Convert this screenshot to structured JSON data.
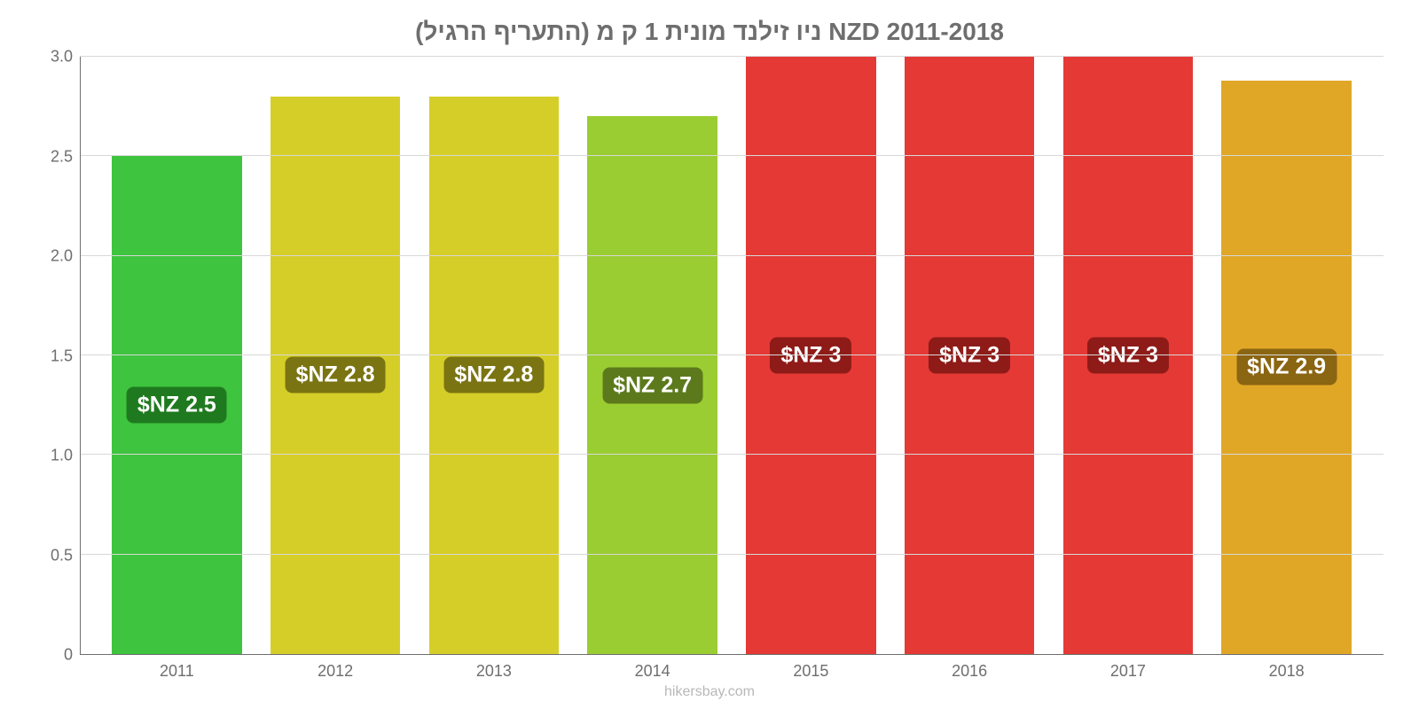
{
  "chart": {
    "type": "bar",
    "title": "ניו זילנד מונית 1 ק מ (התעריף הרגיל) NZD 2011-2018",
    "title_color": "#6e6e6e",
    "title_fontsize": 28,
    "background_color": "#ffffff",
    "grid_color": "#d8d8d8",
    "axis_color": "#6e6e6e",
    "tick_color": "#6e6e6e",
    "tick_fontsize": 18,
    "ylim": [
      0,
      3.0
    ],
    "yticks": [
      0,
      0.5,
      1.0,
      1.5,
      2.0,
      2.5,
      3.0
    ],
    "ytick_labels": [
      "0",
      "0.5",
      "1.0",
      "1.5",
      "2.0",
      "2.5",
      "3.0"
    ],
    "bar_width": 0.82,
    "categories": [
      "2011",
      "2012",
      "2013",
      "2014",
      "2015",
      "2016",
      "2017",
      "2018"
    ],
    "values": [
      2.5,
      2.8,
      2.8,
      2.7,
      3.0,
      3.0,
      3.0,
      2.88
    ],
    "bar_colors": [
      "#3ec43e",
      "#d6ce28",
      "#d6ce28",
      "#9acd32",
      "#e53935",
      "#e53935",
      "#e53935",
      "#e0a726"
    ],
    "value_labels": [
      "$NZ 2.5",
      "$NZ 2.8",
      "$NZ 2.8",
      "$NZ 2.7",
      "$NZ 3",
      "$NZ 3",
      "$NZ 3",
      "$NZ 2.9"
    ],
    "value_label_bg": [
      "#1f7a1f",
      "#7a7412",
      "#7a7412",
      "#5c7a1c",
      "#8e1b18",
      "#8e1b18",
      "#8e1b18",
      "#8a6512"
    ],
    "value_label_color": "#ffffff",
    "value_label_fontsize": 25,
    "attribution": "hikersbay.com",
    "attribution_color": "#b8b8b8"
  }
}
